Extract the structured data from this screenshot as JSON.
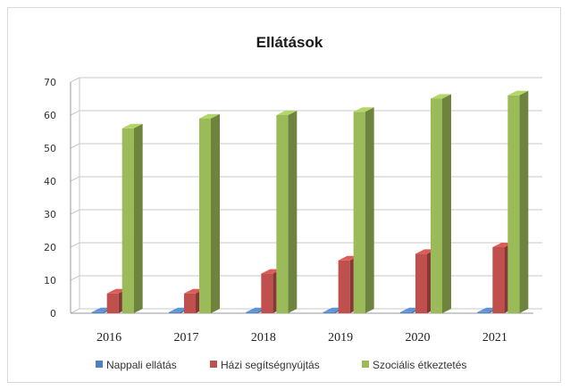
{
  "chart_data": {
    "type": "bar",
    "title": "Ellátások",
    "categories": [
      "2016",
      "2017",
      "2018",
      "2019",
      "2020",
      "2021"
    ],
    "series": [
      {
        "name": "Nappali ellátás",
        "color": "#4f81bd",
        "values": [
          0,
          0,
          0,
          0,
          0,
          0
        ]
      },
      {
        "name": "Házi segítségnyújtás",
        "color": "#c0504d",
        "values": [
          6,
          6,
          12,
          16,
          18,
          20
        ]
      },
      {
        "name": "Szociális étkeztetés",
        "color": "#9bbb59",
        "values": [
          56,
          59,
          60,
          61,
          65,
          66
        ]
      }
    ],
    "yticks": [
      "0",
      "10",
      "20",
      "30",
      "40",
      "50",
      "60",
      "70"
    ],
    "ylim": [
      0,
      70
    ],
    "grid": true,
    "legend": "bottom",
    "style": "3d-column"
  }
}
